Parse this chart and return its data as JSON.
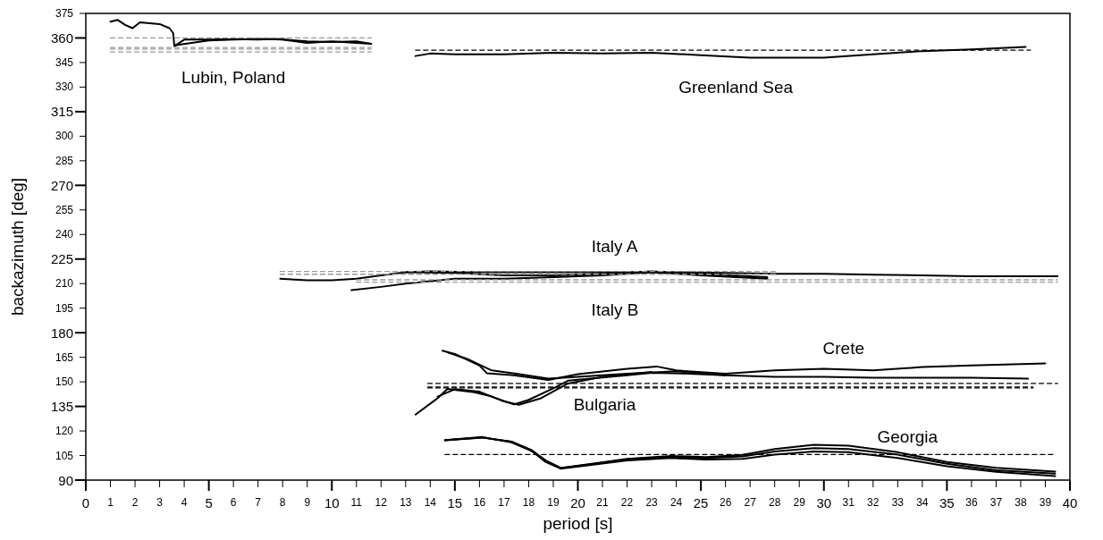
{
  "chart_data": {
    "type": "line",
    "xlabel": "period [s]",
    "ylabel": "backazimuth [deg]",
    "xlim": [
      0,
      40
    ],
    "xticks": [
      0,
      1,
      2,
      3,
      4,
      5,
      6,
      7,
      8,
      9,
      10,
      11,
      12,
      13,
      14,
      15,
      16,
      17,
      18,
      19,
      20,
      21,
      22,
      23,
      24,
      25,
      26,
      27,
      28,
      29,
      30,
      31,
      32,
      33,
      34,
      35,
      36,
      37,
      38,
      39,
      40
    ],
    "ylim": [
      90,
      375
    ],
    "yticks": [
      90,
      105,
      120,
      135,
      150,
      165,
      180,
      195,
      210,
      225,
      240,
      255,
      270,
      285,
      300,
      315,
      330,
      345,
      360,
      375
    ],
    "series": [
      {
        "name": "Lubin, Poland",
        "color": "#000000",
        "line_style": "solid",
        "x": [
          1,
          1.3,
          1.6,
          1.9,
          2.2,
          2.6,
          3.0,
          3.4,
          3.55,
          3.6,
          4.0,
          5,
          6,
          7,
          7.7,
          9,
          10,
          11,
          11.6
        ],
        "values": [
          370,
          371,
          368,
          366,
          369.5,
          369,
          368.5,
          366,
          363,
          355,
          359,
          359,
          359.3,
          359,
          359.5,
          358,
          357.5,
          358,
          356.5
        ]
      },
      {
        "color": "#000000",
        "line_style": "solid",
        "x": [
          3.6,
          5,
          7,
          8,
          9,
          10,
          11,
          11.6
        ],
        "values": [
          355.5,
          358.5,
          359.5,
          359,
          357,
          358,
          357,
          356.5
        ]
      },
      {
        "color": "#999999",
        "line_style": "dashed",
        "x": [
          1,
          11.6
        ],
        "values": [
          360,
          360
        ]
      },
      {
        "color": "#999999",
        "line_style": "dashed",
        "x": [
          1,
          11.6
        ],
        "values": [
          354.2,
          354.2
        ]
      },
      {
        "color": "#999999",
        "line_style": "dashed",
        "x": [
          1,
          11.6
        ],
        "values": [
          353.2,
          353.2
        ]
      },
      {
        "color": "#999999",
        "line_style": "dashed",
        "x": [
          1,
          11.6
        ],
        "values": [
          351.5,
          351.5
        ]
      },
      {
        "name": "Greenland Sea",
        "color": "#000000",
        "line_style": "solid",
        "x": [
          13.4,
          14,
          15,
          17,
          19,
          21,
          23,
          25,
          27,
          29,
          30,
          32,
          34,
          36,
          38.2
        ],
        "values": [
          349,
          350.5,
          350,
          350,
          351,
          350.5,
          351,
          349.5,
          348,
          348,
          348,
          350,
          352,
          353,
          354.5
        ]
      },
      {
        "color": "#000000",
        "line_style": "dashed",
        "x": [
          13.4,
          38.4
        ],
        "values": [
          352.6,
          352.6
        ]
      },
      {
        "name": "Italy A",
        "color": "#000000",
        "line_style": "solid",
        "x": [
          7.9,
          8.5,
          9,
          10,
          11,
          12,
          13,
          14,
          16,
          18,
          20,
          22,
          24,
          26,
          28,
          30,
          32,
          34,
          36,
          38,
          39.5
        ],
        "values": [
          213,
          212.5,
          212,
          212,
          213,
          215,
          217,
          217.5,
          217,
          217,
          217,
          217,
          217,
          216.5,
          216,
          216,
          215.5,
          215,
          214.5,
          214.5,
          214.5
        ]
      },
      {
        "name": "Italy B",
        "color": "#000000",
        "line_style": "solid",
        "x": [
          10.8,
          12,
          13,
          15,
          17,
          19,
          21,
          23,
          25,
          27.7
        ],
        "values": [
          206,
          208,
          210,
          213,
          213,
          214,
          215,
          217,
          215,
          213
        ]
      },
      {
        "color": "#000000",
        "line_style": "solid",
        "x": [
          13,
          15,
          17,
          19,
          21,
          23,
          25,
          27.7
        ],
        "values": [
          217,
          216.5,
          215,
          215,
          216,
          217.5,
          216,
          214
        ]
      },
      {
        "color": "#999999",
        "line_style": "dashed",
        "x": [
          7.9,
          28.1
        ],
        "values": [
          217.4,
          217.4
        ]
      },
      {
        "color": "#999999",
        "line_style": "dashed",
        "x": [
          7.9,
          28.1
        ],
        "values": [
          215.7,
          215.7
        ]
      },
      {
        "color": "#999999",
        "line_style": "dashed",
        "x": [
          11,
          39.5
        ],
        "values": [
          212.3,
          212.3
        ]
      },
      {
        "color": "#999999",
        "line_style": "dashed",
        "x": [
          11,
          39.5
        ],
        "values": [
          210.9,
          210.9
        ]
      },
      {
        "name": "Crete",
        "color": "#000000",
        "line_style": "solid",
        "x": [
          14.5,
          15,
          16,
          16.3,
          17.4,
          18.8,
          20,
          22,
          23.2,
          24,
          26,
          28,
          30,
          32,
          34,
          36,
          39
        ],
        "values": [
          169,
          167,
          160,
          155.3,
          154,
          151.2,
          154.7,
          158,
          159.4,
          157,
          155,
          157,
          158,
          157,
          159,
          160,
          161.3
        ]
      },
      {
        "color": "#000000",
        "line_style": "solid",
        "x": [
          14.7,
          15.5,
          16.5,
          17.5,
          18.8,
          20,
          22,
          24,
          26,
          28,
          30,
          32,
          34,
          36,
          38.3
        ],
        "values": [
          168,
          164,
          157,
          155,
          152,
          153,
          155,
          156.5,
          154,
          153,
          153,
          152.5,
          152.5,
          152.5,
          152
        ]
      },
      {
        "name": "Bulgaria",
        "color": "#000000",
        "line_style": "solid",
        "x": [
          13.4,
          14.3,
          14.7,
          15.8,
          16.5,
          17.4,
          18,
          19,
          19.6,
          20.5,
          22,
          23,
          24.5,
          26
        ],
        "values": [
          130,
          140,
          145.7,
          143.6,
          141,
          136.2,
          139,
          146,
          150.7,
          152,
          154,
          155.5,
          155,
          154
        ]
      },
      {
        "color": "#000000",
        "line_style": "solid",
        "x": [
          14.3,
          15,
          16,
          17,
          17.6,
          18.5,
          19.6,
          21,
          23
        ],
        "values": [
          141,
          145.5,
          144,
          138,
          136,
          140,
          149,
          153,
          156
        ]
      },
      {
        "color": "#000000",
        "line_style": "dashed",
        "x": [
          13.9,
          39.5
        ],
        "values": [
          149,
          149
        ]
      },
      {
        "color": "#000000",
        "line_style": "dashed",
        "x": [
          13.9,
          38.5
        ],
        "values": [
          146.8,
          146.8
        ]
      },
      {
        "color": "#000000",
        "line_style": "dashed",
        "x": [
          13.9,
          38.5
        ],
        "values": [
          146.3,
          146.3
        ]
      },
      {
        "name": "Georgia",
        "color": "#000000",
        "line_style": "solid",
        "x": [
          14.6,
          16.1,
          17.3,
          18.1,
          18.7,
          19.3,
          20.7,
          22,
          23.8,
          25.2,
          26.7,
          28,
          29.6,
          31,
          33,
          35,
          37,
          39.4
        ],
        "values": [
          114.3,
          116.3,
          113,
          108,
          101.6,
          97.4,
          100.2,
          103,
          104.8,
          104,
          105.4,
          109,
          111.6,
          111,
          107,
          101,
          97.5,
          95.2
        ]
      },
      {
        "color": "#000000",
        "line_style": "solid",
        "x": [
          14.6,
          16.1,
          17.3,
          18.1,
          18.7,
          19.3,
          20.7,
          22,
          23.8,
          25.2,
          26.7,
          28,
          29.6,
          31,
          33,
          35,
          37,
          39.4
        ],
        "values": [
          114.3,
          116,
          113.5,
          108.5,
          102,
          97.4,
          100,
          102.5,
          104,
          103.5,
          104.5,
          107.5,
          109.5,
          109,
          105.5,
          100,
          96,
          94
        ]
      },
      {
        "color": "#000000",
        "line_style": "solid",
        "x": [
          14.6,
          16.1,
          17.3,
          18.1,
          18.7,
          19.3,
          20.7,
          22,
          23.8,
          25.2,
          26.7,
          28,
          29.6,
          31,
          33,
          35,
          37,
          39.4
        ],
        "values": [
          114.5,
          116,
          113.5,
          108,
          101,
          97,
          99.5,
          102,
          103.5,
          102.5,
          103,
          105.5,
          107.5,
          107,
          103.5,
          98.5,
          95,
          92.5
        ]
      },
      {
        "color": "#000000",
        "line_style": "dashed",
        "x": [
          14.6,
          39.4
        ],
        "values": [
          105.6,
          105.6
        ]
      }
    ]
  }
}
